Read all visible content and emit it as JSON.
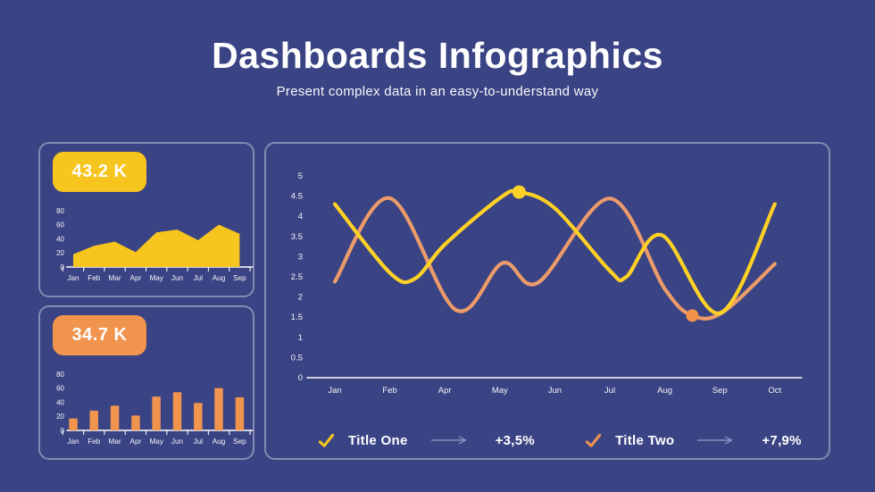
{
  "header": {
    "title": "Dashboards Infographics",
    "subtitle": "Present complex data in an easy-to-understand way"
  },
  "cards": {
    "area": {
      "badge": "43.2 K"
    },
    "bar": {
      "badge": "34.7 K"
    }
  },
  "legend": {
    "items": [
      {
        "label": "Title One",
        "value": "+3,5%",
        "color": "#F6C51E"
      },
      {
        "label": "Title Two",
        "value": "+7,9%",
        "color": "#F0944E"
      }
    ]
  },
  "colors": {
    "background": "#3A4384",
    "card_border": "rgba(255,255,255,0.38)",
    "yellow": "#F6C51E",
    "orange": "#F0944E",
    "line_yellow": "#FFD124",
    "line_orange": "#EC9B6A",
    "dot_orange": "#F3934B",
    "axis_text": "#FFFFFF",
    "arrow": "#9AA3CC"
  },
  "chart_data": [
    {
      "id": "mini-area",
      "type": "area",
      "title_badge": "43.2 K",
      "categories": [
        "Jan",
        "Feb",
        "Mar",
        "Apr",
        "May",
        "Jun",
        "Jul",
        "Aug",
        "Sep"
      ],
      "values": [
        18,
        30,
        36,
        21,
        49,
        53,
        38,
        60,
        47
      ],
      "ylim": [
        0,
        80
      ],
      "yticks": [
        0,
        20,
        40,
        60,
        80
      ],
      "grid": false,
      "color": "#F6C51E"
    },
    {
      "id": "mini-bar",
      "type": "bar",
      "title_badge": "34.7 K",
      "categories": [
        "Jan",
        "Feb",
        "Mar",
        "Apr",
        "May",
        "Jun",
        "Jul",
        "Aug",
        "Sep"
      ],
      "values": [
        17,
        28,
        35,
        21,
        48,
        54,
        39,
        60,
        47
      ],
      "ylim": [
        0,
        80
      ],
      "yticks": [
        0,
        20,
        40,
        60,
        80
      ],
      "grid": false,
      "color": "#F0944E"
    },
    {
      "id": "main-line",
      "type": "line",
      "categories": [
        "Jan",
        "Feb",
        "Apr",
        "May",
        "Jun",
        "Jul",
        "Aug",
        "Sep",
        "Oct"
      ],
      "ylim": [
        0,
        5
      ],
      "yticks": [
        0,
        0.5,
        1,
        1.5,
        2,
        2.5,
        3,
        3.5,
        4,
        4.5,
        5
      ],
      "grid": false,
      "legend_position": "bottom",
      "series": [
        {
          "name": "Title One",
          "change": "+3,5%",
          "color": "#FFD124",
          "marker": {
            "x": 3.35,
            "y": 4.6,
            "r": 7.5
          },
          "marker_color": "#FFD124",
          "points": [
            [
              0,
              4.3
            ],
            [
              1,
              2.6
            ],
            [
              1.45,
              2.45
            ],
            [
              2,
              3.3
            ],
            [
              3,
              4.45
            ],
            [
              3.35,
              4.6
            ],
            [
              4,
              4.2
            ],
            [
              5,
              2.65
            ],
            [
              5.3,
              2.5
            ],
            [
              5.95,
              3.53
            ],
            [
              7,
              1.6
            ],
            [
              8,
              4.3
            ]
          ]
        },
        {
          "name": "Title Two",
          "change": "+7,9%",
          "color": "#EC9B6A",
          "marker": {
            "x": 6.5,
            "y": 1.54,
            "r": 7
          },
          "marker_color": "#F3934B",
          "points": [
            [
              0,
              2.38
            ],
            [
              1,
              4.45
            ],
            [
              2.2,
              1.68
            ],
            [
              3.05,
              2.84
            ],
            [
              3.7,
              2.36
            ],
            [
              5,
              4.44
            ],
            [
              6,
              2.2
            ],
            [
              6.5,
              1.54
            ],
            [
              7.05,
              1.62
            ],
            [
              8,
              2.82
            ]
          ]
        }
      ]
    }
  ]
}
